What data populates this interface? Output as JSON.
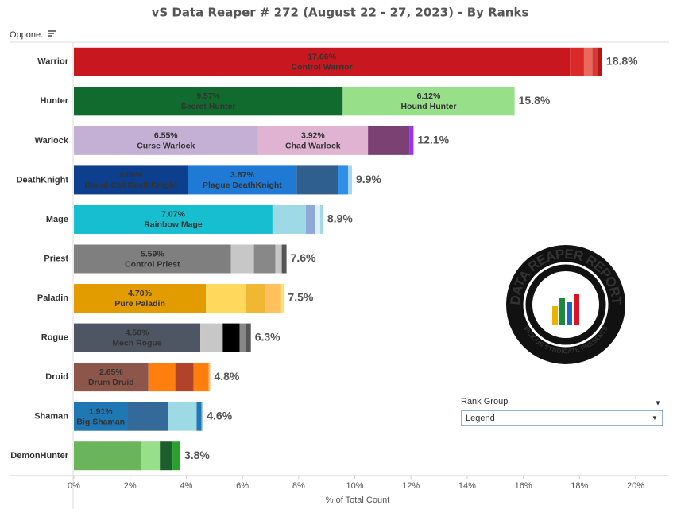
{
  "chart_data": {
    "type": "stacked-bar-horizontal",
    "title": "vS Data Reaper #  272 (August 22 - 27, 2023) - By Ranks",
    "header_label": "Oppone..",
    "x_label": "% of Total Count",
    "xlim": [
      0,
      20
    ],
    "xticks": [
      {
        "value": 0,
        "label": "0%"
      },
      {
        "value": 2,
        "label": "2%"
      },
      {
        "value": 4,
        "label": "4%"
      },
      {
        "value": 6,
        "label": "6%"
      },
      {
        "value": 8,
        "label": "8%"
      },
      {
        "value": 10,
        "label": "10%"
      },
      {
        "value": 12,
        "label": "12%"
      },
      {
        "value": 14,
        "label": "14%"
      },
      {
        "value": 16,
        "label": "16%"
      },
      {
        "value": 18,
        "label": "18%"
      },
      {
        "value": 20,
        "label": "20%"
      }
    ],
    "filter": {
      "title": "Rank Group",
      "selected": "Legend"
    },
    "logo": {
      "title": "DATA REAPER REPORT",
      "subtitle": "VICIOUS SYNDICATE PRESENTS"
    },
    "bars": [
      {
        "category": "Warrior",
        "total": 18.8,
        "total_label": "18.8%",
        "values": [
          17.66,
          0.5,
          0.3,
          0.2,
          0.15
        ],
        "value_labels": [
          "17.66%",
          null,
          null,
          null,
          null
        ],
        "names": [
          "Control Warrior",
          null,
          null,
          null,
          null
        ],
        "colors": [
          "#c8171e",
          "#d9292b",
          "#e96a5d",
          "#d33a36",
          "#b51414"
        ]
      },
      {
        "category": "Hunter",
        "total": 15.8,
        "total_label": "15.8%",
        "values": [
          9.57,
          6.12
        ],
        "value_labels": [
          "9.57%",
          "6.12%"
        ],
        "names": [
          "Secret Hunter",
          "Hound Hunter"
        ],
        "colors": [
          "#116b2f",
          "#98df8a"
        ]
      },
      {
        "category": "Warlock",
        "total": 12.1,
        "total_label": "12.1%",
        "values": [
          6.55,
          3.92,
          1.47,
          0.15
        ],
        "value_labels": [
          "6.55%",
          "3.92%",
          null,
          null
        ],
        "names": [
          "Curse Warlock",
          "Chad Warlock",
          null,
          null
        ],
        "colors": [
          "#c5b0d5",
          "#e1b3d2",
          "#7b4173",
          "#9b30ff"
        ]
      },
      {
        "category": "DeathKnight",
        "total": 9.9,
        "total_label": "9.9%",
        "values": [
          4.06,
          3.87,
          1.48,
          0.35,
          0.14
        ],
        "value_labels": [
          "4.06%",
          "3.87%",
          null,
          null,
          null
        ],
        "names": [
          "Blood-Ctrl DeathKnight",
          "Plague DeathKnight",
          null,
          null,
          null
        ],
        "colors": [
          "#0d3f8f",
          "#1f7ad6",
          "#2f5f8e",
          "#2f8fe8",
          "#a4d7f0"
        ]
      },
      {
        "category": "Mage",
        "total": 8.9,
        "total_label": "8.9%",
        "values": [
          7.07,
          1.19,
          0.34,
          0.17,
          0.11
        ],
        "value_labels": [
          "7.07%",
          null,
          null,
          null,
          null
        ],
        "names": [
          "Rainbow Mage",
          null,
          null,
          null,
          null
        ],
        "colors": [
          "#17becf",
          "#9edae5",
          "#8ea9d8",
          "#dbeff5",
          "#9edae5"
        ]
      },
      {
        "category": "Priest",
        "total": 7.6,
        "total_label": "7.6%",
        "values": [
          5.59,
          0.82,
          0.76,
          0.23,
          0.17
        ],
        "value_labels": [
          "5.59%",
          null,
          null,
          null,
          null
        ],
        "names": [
          "Control Priest",
          null,
          null,
          null,
          null
        ],
        "colors": [
          "#7f7f7f",
          "#c7c7c7",
          "#888888",
          "#c7c7c7",
          "#555555"
        ]
      },
      {
        "category": "Paladin",
        "total": 7.5,
        "total_label": "7.5%",
        "values": [
          4.7,
          1.41,
          0.68,
          0.59,
          0.1
        ],
        "value_labels": [
          "4.70%",
          null,
          null,
          null,
          null
        ],
        "names": [
          "Pure Paladin",
          null,
          null,
          null,
          null
        ],
        "colors": [
          "#e39c00",
          "#ffd85c",
          "#f0b733",
          "#ffc05e",
          "#ffe070"
        ]
      },
      {
        "category": "Rogue",
        "total": 6.3,
        "total_label": "6.3%",
        "values": [
          4.5,
          0.8,
          0.6,
          0.23,
          0.17
        ],
        "value_labels": [
          "4.50%",
          null,
          null,
          null,
          null
        ],
        "names": [
          "Mech Rogue",
          null,
          null,
          null,
          null
        ],
        "colors": [
          "#4e5563",
          "#c7c7c7",
          "#000000",
          "#888888",
          "#555555"
        ]
      },
      {
        "category": "Druid",
        "total": 4.8,
        "total_label": "4.8%",
        "values": [
          2.65,
          0.96,
          0.65,
          0.54,
          0.05
        ],
        "value_labels": [
          "2.65%",
          null,
          null,
          null,
          null
        ],
        "names": [
          "Drum Druid",
          null,
          null,
          null,
          null
        ],
        "colors": [
          "#8c564b",
          "#ff7f0e",
          "#b2432b",
          "#ff7f0e",
          "#ffbb78"
        ]
      },
      {
        "category": "Shaman",
        "total": 4.6,
        "total_label": "4.6%",
        "values": [
          1.91,
          1.44,
          1.02,
          0.17,
          0.05
        ],
        "value_labels": [
          "1.91%",
          null,
          null,
          null,
          null
        ],
        "names": [
          "Big Shaman",
          null,
          null,
          null,
          null
        ],
        "colors": [
          "#1f77b4",
          "#336a9a",
          "#9edae5",
          "#1f77b4",
          "#aec7e8"
        ]
      },
      {
        "category": "DemonHunter",
        "total": 3.8,
        "total_label": "3.8%",
        "values": [
          2.38,
          0.68,
          0.45,
          0.28
        ],
        "value_labels": [
          null,
          null,
          null,
          null
        ],
        "names": [
          null,
          null,
          null,
          null
        ],
        "colors": [
          "#6ab55c",
          "#98df8a",
          "#1c5e2e",
          "#2ca02c"
        ]
      }
    ]
  }
}
